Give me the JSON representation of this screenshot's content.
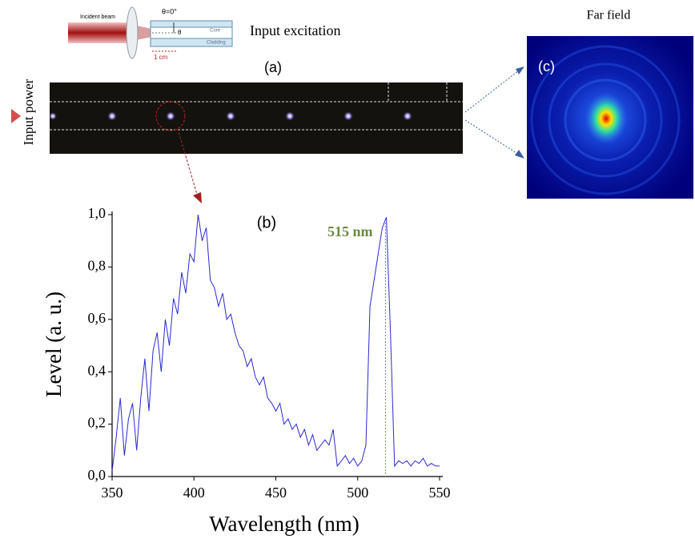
{
  "figure": {
    "incident_beam": "Incident beam",
    "angle": "θ=0°",
    "theta": "θ",
    "core": "Core",
    "cladding": "Cladding",
    "length": "1 cm",
    "input_excitation": "Input excitation",
    "panel_a": "(a)",
    "panel_c": "(c)",
    "far_field": "Far field",
    "input_power": "Input power"
  },
  "chart_data": {
    "type": "line",
    "panel_label": "(b)",
    "x_label": "Wavelength (nm)",
    "y_label": "Level (a. u.)",
    "annotation": {
      "text": "515 nm",
      "x": 517
    },
    "xlim": [
      350,
      550
    ],
    "xticks": [
      350,
      400,
      450,
      500,
      550
    ],
    "ylim": [
      0,
      1
    ],
    "yticks": [
      {
        "value": 0,
        "label": "0,0"
      },
      {
        "value": 0.2,
        "label": "0,2"
      },
      {
        "value": 0.4,
        "label": "0,4"
      },
      {
        "value": 0.6,
        "label": "0,6"
      },
      {
        "value": 0.8,
        "label": "0,8"
      },
      {
        "value": 1,
        "label": "1,0"
      }
    ],
    "x": [
      350,
      352.5,
      355,
      357.5,
      360,
      362.5,
      365,
      367.5,
      370,
      372.5,
      375,
      377.5,
      380,
      382.5,
      385,
      387.5,
      390,
      392.5,
      395,
      397.5,
      400,
      402.5,
      405,
      407.5,
      410,
      412.5,
      415,
      417.5,
      420,
      422.5,
      425,
      427.5,
      430,
      432.5,
      435,
      437.5,
      440,
      442.5,
      445,
      447.5,
      450,
      452.5,
      455,
      457.5,
      460,
      462.5,
      465,
      467.5,
      470,
      472.5,
      475,
      477.5,
      480,
      482.5,
      485,
      487.5,
      490,
      492.5,
      495,
      497.5,
      500,
      502.5,
      505,
      507.5,
      510,
      512.5,
      515,
      517.5,
      520,
      522.5,
      525,
      527.5,
      530,
      532.5,
      535,
      537.5,
      540,
      542.5,
      545,
      547.5,
      550
    ],
    "series": [
      {
        "color": "#2a2ad0",
        "values": [
          0.02,
          0.15,
          0.3,
          0.08,
          0.22,
          0.28,
          0.1,
          0.3,
          0.45,
          0.25,
          0.48,
          0.55,
          0.4,
          0.6,
          0.5,
          0.68,
          0.62,
          0.78,
          0.7,
          0.85,
          0.82,
          1.0,
          0.9,
          0.95,
          0.75,
          0.72,
          0.65,
          0.7,
          0.6,
          0.62,
          0.55,
          0.5,
          0.48,
          0.42,
          0.45,
          0.38,
          0.35,
          0.38,
          0.3,
          0.28,
          0.25,
          0.28,
          0.2,
          0.22,
          0.18,
          0.2,
          0.15,
          0.18,
          0.12,
          0.16,
          0.1,
          0.12,
          0.14,
          0.12,
          0.18,
          0.04,
          0.06,
          0.08,
          0.05,
          0.07,
          0.04,
          0.06,
          0.12,
          0.65,
          0.75,
          0.85,
          0.95,
          0.99,
          0.55,
          0.04,
          0.06,
          0.05,
          0.06,
          0.04,
          0.06,
          0.05,
          0.07,
          0.04,
          0.05,
          0.04,
          0.04
        ]
      }
    ]
  }
}
